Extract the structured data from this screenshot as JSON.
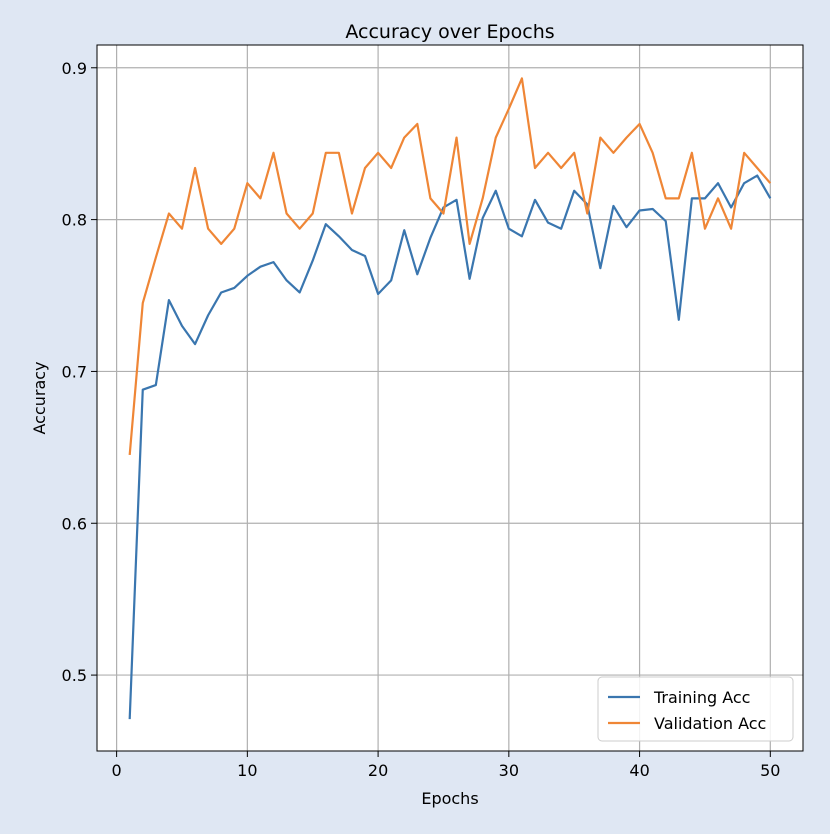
{
  "chart_data": {
    "type": "line",
    "title": "Accuracy over Epochs",
    "xlabel": "Epochs",
    "ylabel": "Accuracy",
    "xlim": [
      -1.5,
      52.5
    ],
    "ylim": [
      0.45,
      0.915
    ],
    "xticks": [
      0,
      10,
      20,
      30,
      40,
      50
    ],
    "yticks": [
      0.5,
      0.6,
      0.7,
      0.8,
      0.9
    ],
    "grid": true,
    "legend": "bottom-right",
    "x": [
      1,
      2,
      3,
      4,
      5,
      6,
      7,
      8,
      9,
      10,
      11,
      12,
      13,
      14,
      15,
      16,
      17,
      18,
      19,
      20,
      21,
      22,
      23,
      24,
      25,
      26,
      27,
      28,
      29,
      30,
      31,
      32,
      33,
      34,
      35,
      36,
      37,
      38,
      39,
      40,
      41,
      42,
      43,
      44,
      45,
      46,
      47,
      48,
      49,
      50
    ],
    "series": [
      {
        "name": "Training Acc",
        "color": "#3a76af",
        "values": [
          0.471,
          0.688,
          0.691,
          0.747,
          0.73,
          0.718,
          0.737,
          0.752,
          0.755,
          0.763,
          0.769,
          0.772,
          0.76,
          0.752,
          0.773,
          0.797,
          0.789,
          0.78,
          0.776,
          0.751,
          0.76,
          0.793,
          0.764,
          0.788,
          0.808,
          0.813,
          0.761,
          0.801,
          0.819,
          0.794,
          0.789,
          0.813,
          0.798,
          0.794,
          0.819,
          0.81,
          0.768,
          0.809,
          0.795,
          0.806,
          0.807,
          0.799,
          0.734,
          0.814,
          0.814,
          0.824,
          0.808,
          0.824,
          0.829,
          0.814
        ]
      },
      {
        "name": "Validation Acc",
        "color": "#ef8636",
        "values": [
          0.645,
          0.745,
          0.775,
          0.804,
          0.794,
          0.834,
          0.794,
          0.784,
          0.794,
          0.824,
          0.814,
          0.844,
          0.804,
          0.794,
          0.804,
          0.844,
          0.844,
          0.804,
          0.834,
          0.844,
          0.834,
          0.854,
          0.863,
          0.814,
          0.804,
          0.854,
          0.784,
          0.814,
          0.854,
          0.873,
          0.893,
          0.834,
          0.844,
          0.834,
          0.844,
          0.804,
          0.854,
          0.844,
          0.854,
          0.863,
          0.844,
          0.814,
          0.814,
          0.844,
          0.794,
          0.814,
          0.794,
          0.844,
          0.834,
          0.824
        ]
      }
    ]
  }
}
